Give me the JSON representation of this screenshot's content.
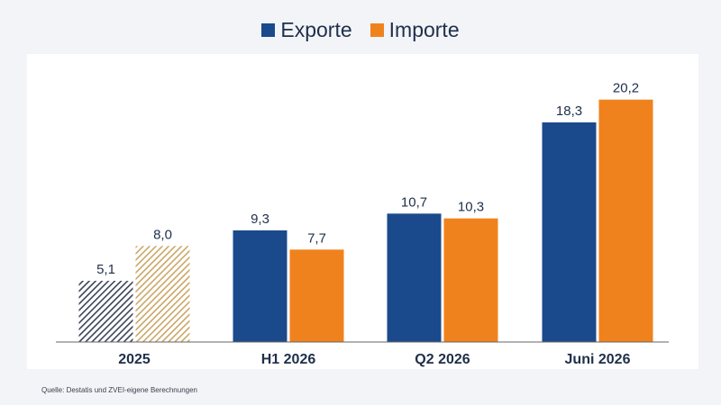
{
  "colors": {
    "exports": "#1b4a8c",
    "imports": "#f0821e",
    "exports_hatch": "#3a4558",
    "imports_hatch": "#c9a768",
    "axis": "#666666",
    "text": "#1f2f4a"
  },
  "legend": {
    "exports_label": "Exporte",
    "imports_label": "Importe"
  },
  "source": "Quelle: Destatis und ZVEI-eigene Berechnungen",
  "chart_data": {
    "type": "bar",
    "categories": [
      "2025",
      "H1 2026",
      "Q2 2026",
      "Juni 2026"
    ],
    "series": [
      {
        "name": "Exporte",
        "values": [
          5.1,
          9.3,
          10.7,
          18.3
        ]
      },
      {
        "name": "Importe",
        "values": [
          8.0,
          7.7,
          10.3,
          20.2
        ]
      }
    ],
    "value_labels": [
      [
        "5,1",
        "9,3",
        "10,7",
        "18,3"
      ],
      [
        "8,0",
        "7,7",
        "10,3",
        "20,2"
      ]
    ],
    "hatched_categories": [
      "2025"
    ],
    "ylim": [
      0,
      24
    ],
    "grid": false,
    "legend_position": "top-center"
  }
}
